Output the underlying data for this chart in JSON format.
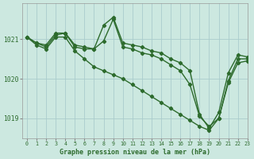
{
  "background_color": "#cce8e0",
  "grid_color": "#aacccc",
  "line_color": "#2d6b2d",
  "xlabel": "Graphe pression niveau de la mer (hPa)",
  "ylim": [
    1018.5,
    1021.9
  ],
  "xlim": [
    -0.5,
    23
  ],
  "yticks": [
    1019,
    1020,
    1021
  ],
  "xticks": [
    0,
    1,
    2,
    3,
    4,
    5,
    6,
    7,
    8,
    9,
    10,
    11,
    12,
    13,
    14,
    15,
    16,
    17,
    18,
    19,
    20,
    21,
    22,
    23
  ],
  "line1_x": [
    0,
    1,
    2,
    3,
    4,
    5,
    6,
    7,
    8,
    9,
    10,
    11,
    12,
    13,
    14,
    15,
    16,
    17,
    18,
    19,
    20,
    21,
    22,
    23
  ],
  "line1_y": [
    1021.05,
    1020.9,
    1020.85,
    1021.15,
    1021.15,
    1020.85,
    1020.8,
    1020.75,
    1021.35,
    1021.55,
    1020.9,
    1020.85,
    1020.8,
    1020.7,
    1020.65,
    1020.5,
    1020.4,
    1020.2,
    1019.1,
    1018.75,
    1019.15,
    1020.15,
    1020.6,
    1020.55
  ],
  "line2_x": [
    0,
    1,
    2,
    3,
    4,
    5,
    6,
    7,
    8,
    9,
    10,
    11,
    12,
    13,
    14,
    15,
    16,
    17,
    18,
    19,
    20,
    21,
    22,
    23
  ],
  "line2_y": [
    1021.05,
    1020.9,
    1020.8,
    1021.1,
    1021.15,
    1020.8,
    1020.75,
    1020.75,
    1020.95,
    1021.5,
    1020.8,
    1020.75,
    1020.65,
    1020.6,
    1020.5,
    1020.35,
    1020.2,
    1019.85,
    1019.05,
    1018.8,
    1019.0,
    1019.95,
    1020.5,
    1020.5
  ],
  "line3_x": [
    0,
    1,
    2,
    3,
    4,
    5,
    6,
    7,
    8,
    9,
    10,
    11,
    12,
    13,
    14,
    15,
    16,
    17,
    18,
    19,
    20,
    21,
    22,
    23
  ],
  "line3_y": [
    1021.05,
    1020.85,
    1020.75,
    1021.05,
    1021.05,
    1020.7,
    1020.5,
    1020.3,
    1020.2,
    1020.1,
    1020.0,
    1019.85,
    1019.7,
    1019.55,
    1019.4,
    1019.25,
    1019.1,
    1018.95,
    1018.8,
    1018.7,
    1019.0,
    1019.9,
    1020.4,
    1020.45
  ],
  "marker": "D",
  "markersize": 2.2,
  "linewidth": 1.0
}
